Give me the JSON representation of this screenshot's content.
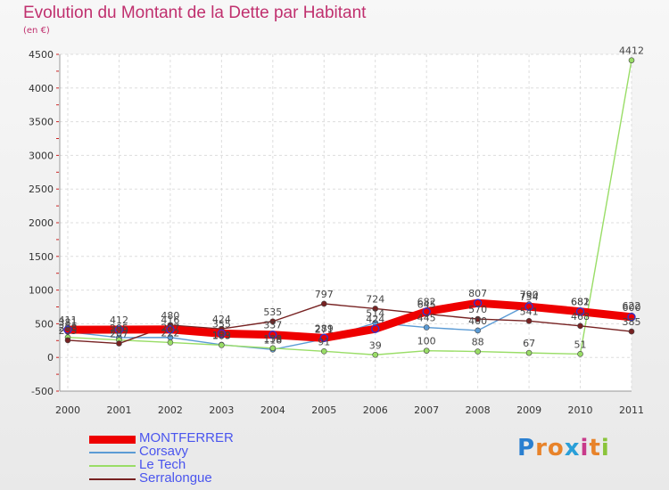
{
  "chart_data": {
    "type": "line",
    "title": "Evolution du Montant de la Dette par Habitant",
    "subtitle": "(en €)",
    "xlabel": "",
    "ylabel": "",
    "categories": [
      "2000",
      "2001",
      "2002",
      "2003",
      "2004",
      "2005",
      "2006",
      "2007",
      "2008",
      "2009",
      "2010",
      "2011"
    ],
    "ylim": [
      -500,
      4500
    ],
    "yticks": [
      -500,
      0,
      500,
      1000,
      1500,
      2000,
      2500,
      3000,
      3500,
      4000,
      4500
    ],
    "grid": true,
    "legend_position": "bottom-left",
    "series": [
      {
        "name": "MONTFERRER",
        "color": "#ee0000",
        "text_color": "#4a55ee",
        "emphasis": "thick",
        "values": [
          411,
          412,
          416,
          355,
          337,
          289,
          424,
          682,
          807,
          754,
          681,
          600
        ]
      },
      {
        "name": "Corsavy",
        "color": "#5b9bd5",
        "text_color": "#4a55ee",
        "emphasis": "normal",
        "values": [
          381,
          295,
          297,
          189,
          118,
          271,
          514,
          445,
          400,
          790,
          682,
          622
        ]
      },
      {
        "name": "Le Tech",
        "color": "#99dd66",
        "text_color": "#4a55ee",
        "emphasis": "normal",
        "values": [
          298,
          259,
          222,
          183,
          138,
          91,
          39,
          100,
          88,
          67,
          51,
          4412
        ]
      },
      {
        "name": "Serralongue",
        "color": "#772222",
        "text_color": "#4a55ee",
        "emphasis": "normal",
        "values": [
          255,
          207,
          480,
          424,
          535,
          797,
          724,
          645,
          570,
          541,
          468,
          385
        ]
      }
    ]
  },
  "logo": {
    "text": "Proxiti"
  }
}
